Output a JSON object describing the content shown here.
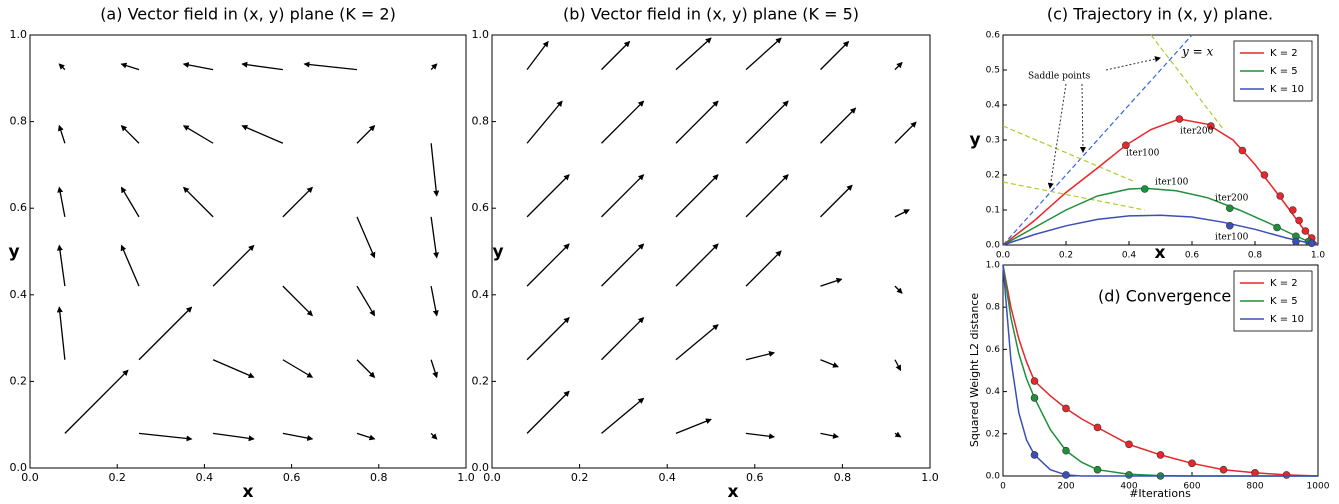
{
  "chart_data": [
    {
      "type": "quiver",
      "title": "(a)   Vector field in (x, y) plane (K = 2)",
      "xlabel": "x",
      "ylabel": "y",
      "xlim": [
        0,
        1
      ],
      "ylim": [
        0,
        1
      ],
      "xticks": [
        {
          "value": 0,
          "label": "0.0"
        },
        0.2,
        0.4,
        0.6,
        0.8,
        {
          "value": 1,
          "label": "1.0"
        }
      ],
      "yticks": [
        {
          "value": 0,
          "label": "0.0"
        },
        0.2,
        0.4,
        0.6,
        0.8,
        {
          "value": 1,
          "label": "1.0"
        }
      ],
      "color": "#000000",
      "x": [
        0.08,
        0.25,
        0.42,
        0.58,
        0.75,
        0.92
      ],
      "y": [
        0.08,
        0.25,
        0.42,
        0.58,
        0.75,
        0.92
      ],
      "u": [
        [
          0.9,
          0.75,
          0.58,
          0.42,
          0.25,
          0.08
        ],
        [
          -0.08,
          0.75,
          0.58,
          0.42,
          0.25,
          0.08
        ],
        [
          -0.08,
          -0.25,
          0.58,
          0.42,
          0.25,
          0.08
        ],
        [
          -0.08,
          -0.25,
          -0.42,
          0.42,
          0.25,
          0.08
        ],
        [
          -0.08,
          -0.25,
          -0.42,
          -0.58,
          0.25,
          0.08
        ],
        [
          -0.08,
          -0.25,
          -0.42,
          -0.58,
          -0.75,
          0.08
        ]
      ],
      "v": [
        [
          0.9,
          -0.08,
          -0.08,
          -0.08,
          -0.08,
          -0.08
        ],
        [
          0.75,
          0.75,
          -0.25,
          -0.25,
          -0.25,
          -0.25
        ],
        [
          0.58,
          0.58,
          0.58,
          -0.42,
          -0.42,
          -0.42
        ],
        [
          0.42,
          0.42,
          0.42,
          0.42,
          -0.58,
          -0.58
        ],
        [
          0.25,
          0.25,
          0.25,
          0.25,
          0.25,
          -0.75
        ],
        [
          0.08,
          0.08,
          0.08,
          0.08,
          0.08,
          0.08
        ]
      ]
    },
    {
      "type": "quiver",
      "title": "(b)   Vector field in (x, y) plane (K = 5)",
      "xlabel": "x",
      "ylabel": "y",
      "xlim": [
        0,
        1
      ],
      "ylim": [
        0,
        1
      ],
      "xticks": [
        {
          "value": 0,
          "label": "0.0"
        },
        0.2,
        0.4,
        0.6,
        0.8,
        {
          "value": 1,
          "label": "1.0"
        }
      ],
      "yticks": [
        {
          "value": 0,
          "label": "0.0"
        },
        0.2,
        0.4,
        0.6,
        0.8,
        {
          "value": 1,
          "label": "1.0"
        }
      ],
      "color": "#000000",
      "x": [
        0.08,
        0.25,
        0.42,
        0.58,
        0.75,
        0.92
      ],
      "y": [
        0.08,
        0.25,
        0.42,
        0.58,
        0.75,
        0.92
      ],
      "u": [
        [
          0.6,
          0.6,
          0.5,
          0.4,
          0.25,
          0.08
        ],
        [
          0.6,
          0.6,
          0.6,
          0.4,
          0.25,
          0.08
        ],
        [
          0.6,
          0.6,
          0.6,
          0.5,
          0.3,
          0.1
        ],
        [
          0.6,
          0.6,
          0.6,
          0.6,
          0.45,
          0.2
        ],
        [
          0.5,
          0.6,
          0.6,
          0.6,
          0.5,
          0.3
        ],
        [
          0.3,
          0.4,
          0.5,
          0.5,
          0.4,
          0.1
        ]
      ],
      "v": [
        [
          0.6,
          0.5,
          0.2,
          -0.05,
          -0.05,
          -0.05
        ],
        [
          0.6,
          0.6,
          0.5,
          0.1,
          -0.1,
          -0.15
        ],
        [
          0.6,
          0.6,
          0.6,
          0.5,
          0.1,
          -0.1
        ],
        [
          0.6,
          0.6,
          0.6,
          0.6,
          0.45,
          0.1
        ],
        [
          0.6,
          0.6,
          0.6,
          0.6,
          0.5,
          0.3
        ],
        [
          0.4,
          0.4,
          0.45,
          0.45,
          0.4,
          0.1
        ]
      ]
    },
    {
      "type": "line",
      "title": "(c)  Trajectory in (x, y) plane.",
      "xlabel": "x",
      "ylabel": "y",
      "xlim": [
        0,
        1
      ],
      "ylim": [
        0,
        0.6
      ],
      "xticks": [
        {
          "value": 0,
          "label": "0.0"
        },
        0.2,
        0.4,
        0.6,
        0.8,
        {
          "value": 1,
          "label": "1.0"
        }
      ],
      "yticks": [
        {
          "value": 0,
          "label": "0.0"
        },
        0.1,
        0.2,
        0.3,
        0.4,
        0.5,
        0.6
      ],
      "legend": "upper right",
      "series": [
        {
          "name": "K = 2",
          "color": "#e8262b",
          "x": [
            0,
            0.1,
            0.2,
            0.3,
            0.39,
            0.47,
            0.56,
            0.65,
            0.73,
            0.8,
            0.86,
            0.91,
            0.95,
            0.98,
            1.0
          ],
          "values": [
            0,
            0.07,
            0.15,
            0.22,
            0.285,
            0.33,
            0.36,
            0.345,
            0.3,
            0.23,
            0.16,
            0.1,
            0.05,
            0.02,
            0
          ],
          "marker_x": [
            0.39,
            0.56,
            0.66,
            0.76,
            0.83,
            0.88,
            0.92,
            0.94,
            0.96,
            0.98
          ],
          "marker_y": [
            0.285,
            0.36,
            0.34,
            0.27,
            0.2,
            0.14,
            0.1,
            0.07,
            0.04,
            0.02
          ]
        },
        {
          "name": "K = 5",
          "color": "#1f8f3a",
          "x": [
            0,
            0.1,
            0.2,
            0.3,
            0.4,
            0.45,
            0.55,
            0.65,
            0.75,
            0.85,
            0.92,
            0.97,
            1.0
          ],
          "values": [
            0,
            0.05,
            0.1,
            0.14,
            0.16,
            0.162,
            0.155,
            0.135,
            0.1,
            0.06,
            0.03,
            0.01,
            0
          ],
          "marker_x": [
            0.45,
            0.72,
            0.87,
            0.93,
            0.97
          ],
          "marker_y": [
            0.16,
            0.105,
            0.05,
            0.025,
            0.01
          ]
        },
        {
          "name": "K = 10",
          "color": "#3b4fb8",
          "x": [
            0,
            0.1,
            0.2,
            0.3,
            0.4,
            0.5,
            0.6,
            0.7,
            0.8,
            0.9,
            0.95,
            1.0
          ],
          "values": [
            0,
            0.03,
            0.055,
            0.073,
            0.083,
            0.085,
            0.08,
            0.065,
            0.045,
            0.02,
            0.01,
            0
          ],
          "marker_x": [
            0.72,
            0.93,
            0.98
          ],
          "marker_y": [
            0.055,
            0.01,
            0.005
          ]
        }
      ],
      "reference_lines": [
        {
          "color": "#3366dd",
          "x": [
            0,
            0.6
          ],
          "y": [
            0,
            0.6
          ]
        },
        {
          "color": "#b5c832",
          "x": [
            0,
            0.42
          ],
          "y": [
            0.34,
            0.18
          ]
        },
        {
          "color": "#b5c832",
          "x": [
            0,
            0.45
          ],
          "y": [
            0.18,
            0.1
          ]
        },
        {
          "color": "#b5c832",
          "x": [
            0.47,
            0.7
          ],
          "y": [
            0.6,
            0.33
          ]
        }
      ],
      "annotations": [
        "y = x",
        "Saddle points",
        "iter100",
        "iter200",
        "iter100",
        "iter200",
        "iter100"
      ]
    },
    {
      "type": "line",
      "title": "(d)  Convergence",
      "xlabel": "#Iterations",
      "ylabel": "Squared Weight L2 distance",
      "xlim": [
        0,
        1000
      ],
      "ylim": [
        0,
        1
      ],
      "xticks": [
        0,
        200,
        400,
        600,
        800,
        1000
      ],
      "yticks": [
        {
          "value": 0,
          "label": "0.0"
        },
        0.2,
        0.4,
        0.6,
        0.8,
        {
          "value": 1,
          "label": "1.0"
        }
      ],
      "legend": "upper right",
      "series": [
        {
          "name": "K = 2",
          "color": "#e8262b",
          "x": [
            0,
            25,
            50,
            75,
            100,
            150,
            200,
            250,
            300,
            400,
            500,
            600,
            700,
            800,
            900,
            1000
          ],
          "values": [
            1.0,
            0.8,
            0.65,
            0.54,
            0.45,
            0.38,
            0.32,
            0.27,
            0.23,
            0.15,
            0.1,
            0.06,
            0.03,
            0.015,
            0.005,
            0
          ],
          "marker_x": [
            100,
            200,
            300,
            400,
            500,
            600,
            700,
            800,
            900
          ],
          "marker_y": [
            0.45,
            0.32,
            0.23,
            0.15,
            0.1,
            0.06,
            0.03,
            0.015,
            0.005
          ]
        },
        {
          "name": "K = 5",
          "color": "#1f8f3a",
          "x": [
            0,
            25,
            50,
            75,
            100,
            150,
            200,
            250,
            300,
            400,
            500,
            600,
            700,
            800,
            900,
            1000
          ],
          "values": [
            1.0,
            0.75,
            0.58,
            0.46,
            0.37,
            0.22,
            0.12,
            0.065,
            0.03,
            0.008,
            0.002,
            0,
            0,
            0,
            0,
            0
          ],
          "marker_x": [
            100,
            200,
            300,
            400,
            500
          ],
          "marker_y": [
            0.37,
            0.12,
            0.03,
            0.005,
            0
          ]
        },
        {
          "name": "K = 10",
          "color": "#3b4fb8",
          "x": [
            0,
            25,
            50,
            75,
            100,
            150,
            200,
            250,
            300,
            400,
            500,
            600,
            700,
            800,
            900,
            1000
          ],
          "values": [
            1.0,
            0.55,
            0.3,
            0.17,
            0.1,
            0.03,
            0.005,
            0,
            0,
            0,
            0,
            0,
            0,
            0,
            0,
            0
          ],
          "marker_x": [
            100,
            200
          ],
          "marker_y": [
            0.1,
            0.005
          ]
        }
      ]
    }
  ]
}
